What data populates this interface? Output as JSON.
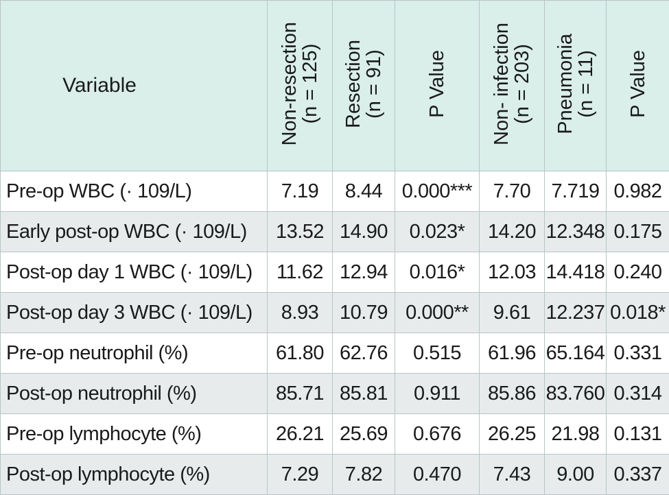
{
  "headers": {
    "variable": "Variable",
    "col1": {
      "line1": "Non-resection",
      "line2": "(n = 125)"
    },
    "col2": {
      "line1": "Resection",
      "line2": "(n = 91)"
    },
    "col3": {
      "line1": "P Value"
    },
    "col4": {
      "line1": "Non- infection",
      "line2": "(n = 203)"
    },
    "col5": {
      "line1": "Pneumonia",
      "line2": "(n = 11)"
    },
    "col6": {
      "line1": "P Value"
    }
  },
  "rows": [
    {
      "variable": "Pre-op WBC (· 109/L)",
      "v1": "7.19",
      "v2": "8.44",
      "v3": "0.000***",
      "v4": "7.70",
      "v5": "7.719",
      "v6": "0.982"
    },
    {
      "variable": "Early post-op WBC (· 109/L)",
      "v1": "13.52",
      "v2": "14.90",
      "v3": "0.023*",
      "v4": "14.20",
      "v5": "12.348",
      "v6": "0.175"
    },
    {
      "variable": "Post-op day 1 WBC (· 109/L)",
      "v1": "11.62",
      "v2": "12.94",
      "v3": "0.016*",
      "v4": "12.03",
      "v5": "14.418",
      "v6": "0.240"
    },
    {
      "variable": "Post-op day 3 WBC (· 109/L)",
      "v1": "8.93",
      "v2": "10.79",
      "v3": "0.000**",
      "v4": "9.61",
      "v5": "12.237",
      "v6": "0.018*"
    },
    {
      "variable": "Pre-op neutrophil (%)",
      "v1": "61.80",
      "v2": "62.76",
      "v3": "0.515",
      "v4": "61.96",
      "v5": "65.164",
      "v6": "0.331"
    },
    {
      "variable": "Post-op neutrophil (%)",
      "v1": "85.71",
      "v2": "85.81",
      "v3": "0.911",
      "v4": "85.86",
      "v5": "83.760",
      "v6": "0.314"
    },
    {
      "variable": "Pre-op lymphocyte (%)",
      "v1": "26.21",
      "v2": "25.69",
      "v3": "0.676",
      "v4": "26.25",
      "v5": "21.98",
      "v6": "0.131"
    },
    {
      "variable": "Post-op lymphocyte (%)",
      "v1": "7.29",
      "v2": "7.82",
      "v3": "0.470",
      "v4": "7.43",
      "v5": "9.00",
      "v6": "0.337"
    }
  ],
  "colors": {
    "header_bg": "#daeeea",
    "row_alt_bg": "#e7ebec",
    "border": "#b8c4c4"
  }
}
